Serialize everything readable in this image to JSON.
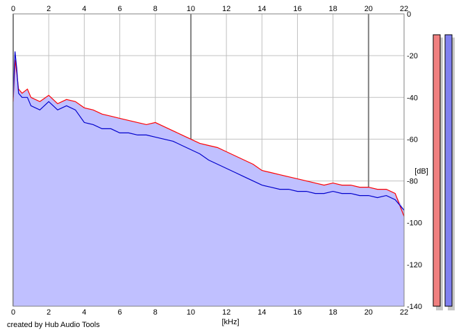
{
  "footer": {
    "credit": "created by Hub Audio Tools"
  },
  "chart_data": {
    "type": "area",
    "xlabel": "[kHz]",
    "ylabel": "[dB]",
    "xlim": [
      0,
      22
    ],
    "ylim": [
      -140,
      0
    ],
    "x_ticks": [
      0,
      2,
      4,
      6,
      8,
      10,
      12,
      14,
      16,
      18,
      20,
      22
    ],
    "y_ticks": [
      0,
      -20,
      -40,
      -60,
      -80,
      -100,
      -120,
      -140
    ],
    "grid": true,
    "major_x_gridlines": [
      0,
      10,
      20
    ],
    "series": [
      {
        "channel": "left",
        "color": "#ff0000",
        "x": [
          0,
          0.1,
          0.2,
          0.3,
          0.5,
          0.8,
          1.0,
          1.5,
          2.0,
          2.5,
          3.0,
          3.5,
          4.0,
          4.5,
          5.0,
          5.5,
          6.0,
          6.5,
          7.0,
          7.5,
          8.0,
          8.5,
          9.0,
          9.5,
          10.0,
          10.5,
          11.0,
          11.5,
          12.0,
          12.5,
          13.0,
          13.5,
          14.0,
          14.5,
          15.0,
          15.5,
          16.0,
          16.5,
          17.0,
          17.5,
          18.0,
          18.5,
          19.0,
          19.5,
          20.0,
          20.5,
          21.0,
          21.5,
          22.0
        ],
        "y": [
          -42,
          -22,
          -28,
          -36,
          -38,
          -36,
          -40,
          -42,
          -39,
          -43,
          -41,
          -42,
          -45,
          -46,
          -48,
          -49,
          -50,
          -51,
          -52,
          -53,
          -52,
          -54,
          -56,
          -58,
          -60,
          -62,
          -63,
          -64,
          -66,
          -68,
          -70,
          -72,
          -75,
          -76,
          -77,
          -78,
          -79,
          -80,
          -81,
          -82,
          -81,
          -82,
          -82,
          -83,
          -83,
          -84,
          -84,
          -86,
          -97
        ]
      },
      {
        "channel": "right",
        "color": "#0000cc",
        "x": [
          0,
          0.1,
          0.2,
          0.3,
          0.5,
          0.8,
          1.0,
          1.5,
          2.0,
          2.5,
          3.0,
          3.5,
          4.0,
          4.5,
          5.0,
          5.5,
          6.0,
          6.5,
          7.0,
          7.5,
          8.0,
          8.5,
          9.0,
          9.5,
          10.0,
          10.5,
          11.0,
          11.5,
          12.0,
          12.5,
          13.0,
          13.5,
          14.0,
          14.5,
          15.0,
          15.5,
          16.0,
          16.5,
          17.0,
          17.5,
          18.0,
          18.5,
          19.0,
          19.5,
          20.0,
          20.5,
          21.0,
          21.5,
          22.0
        ],
        "y": [
          -40,
          -18,
          -26,
          -38,
          -40,
          -40,
          -44,
          -46,
          -42,
          -46,
          -44,
          -46,
          -52,
          -53,
          -55,
          -55,
          -57,
          -57,
          -58,
          -58,
          -59,
          -60,
          -61,
          -63,
          -65,
          -67,
          -70,
          -72,
          -74,
          -76,
          -78,
          -80,
          -82,
          -83,
          -84,
          -84,
          -85,
          -85,
          -86,
          -86,
          -85,
          -86,
          -86,
          -87,
          -87,
          -88,
          -87,
          -89,
          -94
        ]
      }
    ],
    "level_meters": [
      {
        "channel": "left",
        "color": "#f08080",
        "level_db": -6
      },
      {
        "channel": "right",
        "color": "#8080f0",
        "level_db": -6
      }
    ]
  }
}
